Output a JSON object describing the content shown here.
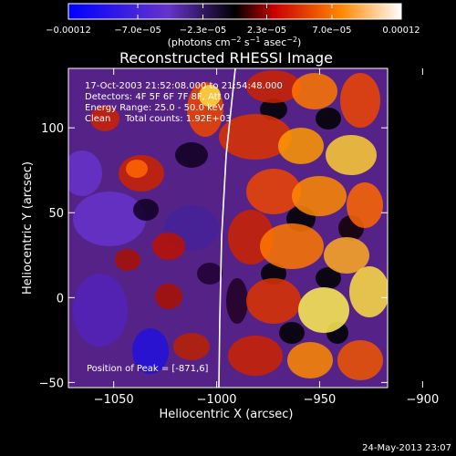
{
  "chart_data": {
    "type": "heatmap",
    "title": "Reconstructed RHESSI Image",
    "xlabel": "Heliocentric X (arcsec)",
    "ylabel": "Heliocentric Y (arcsec)",
    "xlim": [
      -1072,
      -917
    ],
    "ylim": [
      -53,
      135
    ],
    "xticks": [
      -1050,
      -1000,
      -950,
      -900
    ],
    "xtick_labels": [
      "−1050",
      "−1000",
      "−950",
      "−900"
    ],
    "yticks": [
      -50,
      0,
      50,
      100
    ],
    "ytick_labels": [
      "−50",
      "0",
      "50",
      "100"
    ],
    "colorbar": {
      "range": [
        -0.00012,
        0.00012
      ],
      "ticks": [
        -0.00012,
        -7e-05,
        -2.3e-05,
        2.3e-05,
        7e-05,
        0.00012
      ],
      "tick_labels": [
        "−0.00012",
        "−7.0e−05",
        "−2.3e−05",
        "2.3e−05",
        "7.0e−05",
        "0.00012"
      ],
      "unit_parts": [
        "(photons cm",
        "−2",
        " s",
        "−1",
        " asec",
        "−2",
        ")"
      ],
      "colors": [
        "#0000ff",
        "#6633cc",
        "#000000",
        "#cc0000",
        "#ff8800",
        "#ffffff"
      ]
    },
    "annotations": [
      "17-Oct-2003 21:52:08.000 to 21:54:48.000",
      "Detectors: 4F 5F 6F 7F 8F, Att 0",
      "Energy Range: 25.0 - 50.0 keV",
      "Clean     Total counts: 1.92E+03"
    ],
    "peak_label": "Position of Peak = [-871,6]",
    "limb_line_color": "#ffffff"
  },
  "footer_date": "24-May-2013 23:07"
}
